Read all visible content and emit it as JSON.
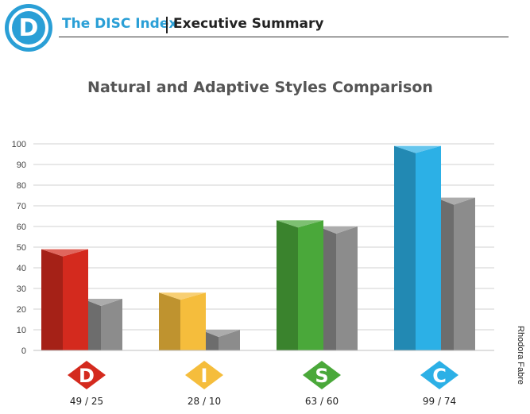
{
  "header": {
    "logo_letter": "D",
    "brand": "The DISC Index",
    "section": "Executive Summary"
  },
  "author": "Rhodora Fabre",
  "colors": {
    "brand_blue": "#2a9fd6",
    "adaptive_gray": "#8c8c8c",
    "D": "#d42a1e",
    "I": "#f5bd3c",
    "S": "#4aa83a",
    "C": "#2cb0e6"
  },
  "chart_data": {
    "type": "bar",
    "title": "Natural and Adaptive Styles Comparison",
    "xlabel": "",
    "ylabel": "",
    "ylim": [
      0,
      100
    ],
    "yticks": [
      0,
      10,
      20,
      30,
      40,
      50,
      60,
      70,
      80,
      90,
      100
    ],
    "grid": true,
    "categories": [
      "D",
      "I",
      "S",
      "C"
    ],
    "category_labels": [
      "49 / 25",
      "28 / 10",
      "63 / 60",
      "99 / 74"
    ],
    "series": [
      {
        "values": [
          49,
          28,
          63,
          99
        ]
      },
      {
        "values": [
          25,
          10,
          60,
          74
        ]
      }
    ]
  }
}
